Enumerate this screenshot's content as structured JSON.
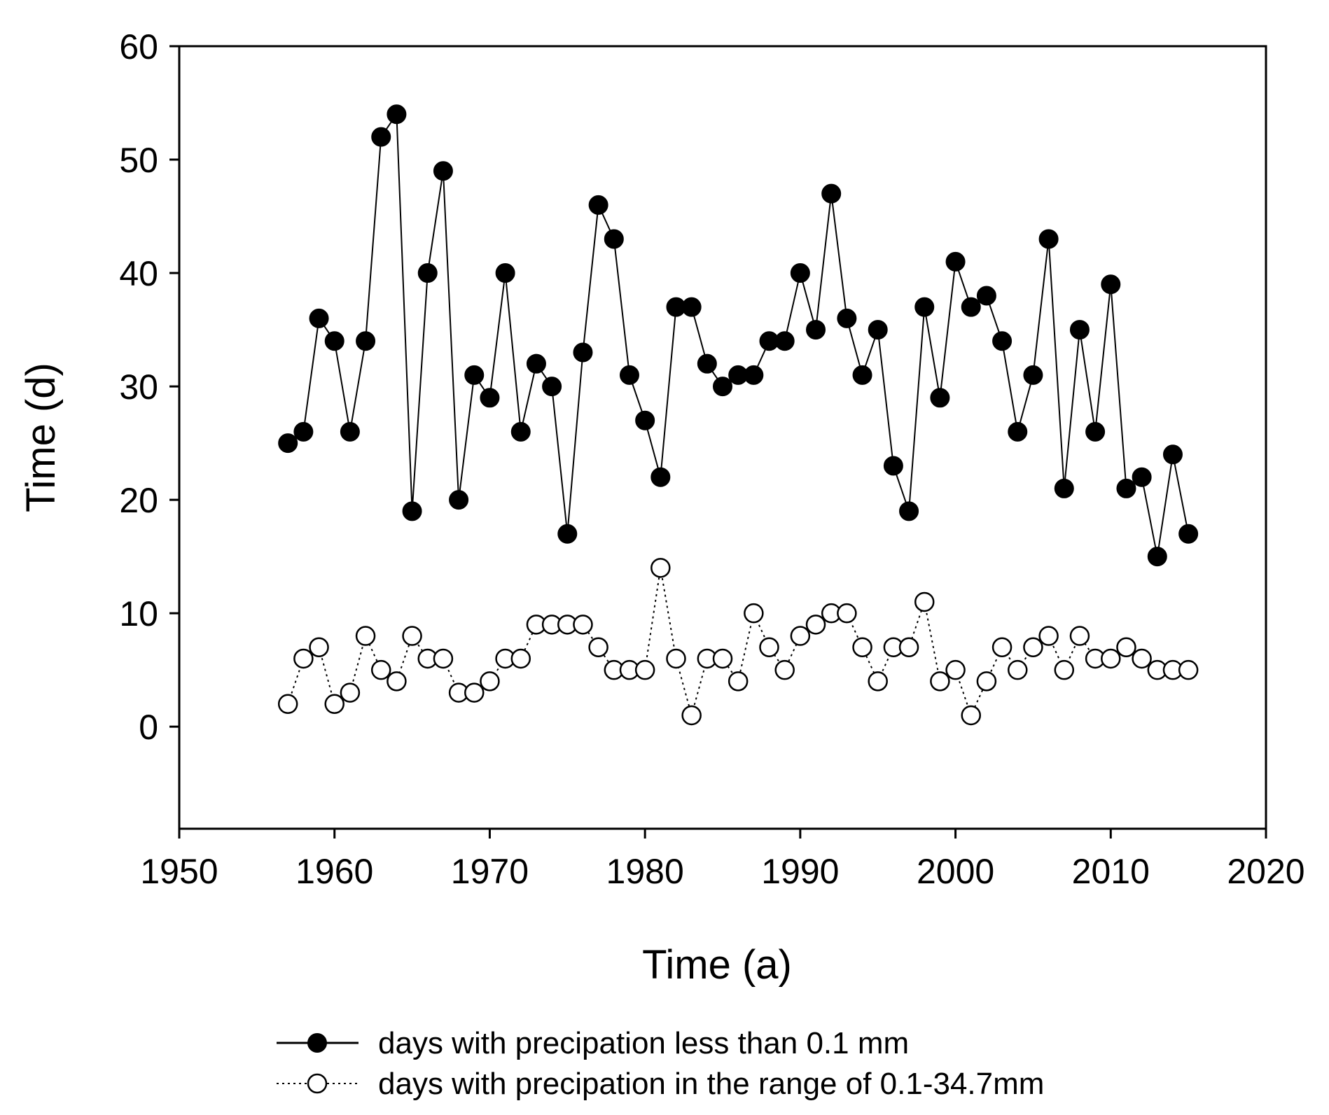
{
  "chart_data": {
    "type": "line",
    "title": "",
    "xlabel": "Time (a)",
    "ylabel": "Time (d)",
    "xlim": [
      1950,
      2020
    ],
    "ylim": [
      -9,
      60
    ],
    "xticks": [
      1950,
      1960,
      1970,
      1980,
      1990,
      2000,
      2010,
      2020
    ],
    "yticks": [
      0,
      10,
      20,
      30,
      40,
      50,
      60
    ],
    "legend_position": "bottom",
    "x": [
      1957,
      1958,
      1959,
      1960,
      1961,
      1962,
      1963,
      1964,
      1965,
      1966,
      1967,
      1968,
      1969,
      1970,
      1971,
      1972,
      1973,
      1974,
      1975,
      1976,
      1977,
      1978,
      1979,
      1980,
      1981,
      1982,
      1983,
      1984,
      1985,
      1986,
      1987,
      1988,
      1989,
      1990,
      1991,
      1992,
      1993,
      1994,
      1995,
      1996,
      1997,
      1998,
      1999,
      2000,
      2001,
      2002,
      2003,
      2004,
      2005,
      2006,
      2007,
      2008,
      2009,
      2010,
      2011,
      2012,
      2013,
      2014,
      2015
    ],
    "series": [
      {
        "name": "days with precipation less than 0.1 mm",
        "marker": "filled-circle",
        "line": "solid",
        "color": "#000000",
        "values": [
          25,
          26,
          36,
          34,
          26,
          34,
          52,
          54,
          19,
          40,
          49,
          20,
          31,
          29,
          40,
          26,
          32,
          30,
          17,
          33,
          46,
          43,
          31,
          27,
          22,
          37,
          37,
          32,
          30,
          31,
          31,
          34,
          34,
          40,
          35,
          47,
          36,
          31,
          35,
          23,
          19,
          37,
          29,
          41,
          37,
          38,
          34,
          26,
          31,
          43,
          21,
          35,
          26,
          39,
          21,
          22,
          15,
          24,
          17
        ]
      },
      {
        "name": "days with precipation in the range of 0.1-34.7mm",
        "marker": "open-circle",
        "line": "dotted",
        "color": "#000000",
        "values": [
          2,
          6,
          7,
          2,
          3,
          8,
          5,
          4,
          8,
          6,
          6,
          3,
          3,
          4,
          6,
          6,
          9,
          9,
          9,
          9,
          7,
          5,
          5,
          5,
          14,
          6,
          1,
          6,
          6,
          4,
          10,
          7,
          5,
          8,
          9,
          10,
          10,
          7,
          4,
          7,
          7,
          11,
          4,
          5,
          1,
          4,
          7,
          5,
          7,
          8,
          5,
          8,
          6,
          6,
          7,
          6,
          5,
          5,
          5
        ]
      }
    ]
  }
}
